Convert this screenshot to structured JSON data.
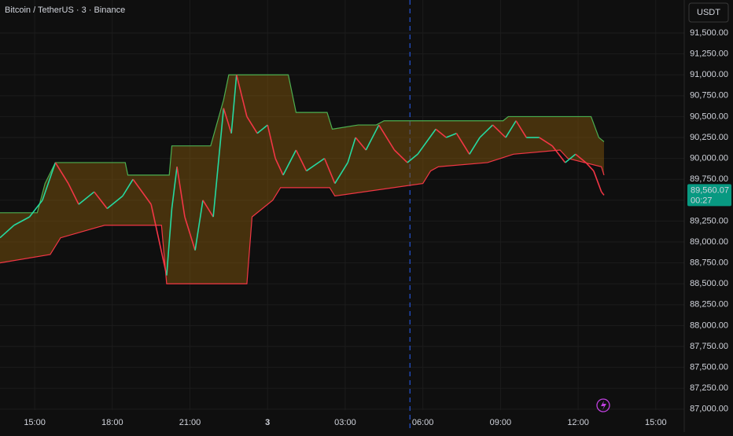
{
  "chart_data": {
    "type": "line",
    "title": "Bitcoin / TetherUS · 3 · Binance",
    "currency": "USDT",
    "last_price_label": "89,560.07",
    "countdown": "00:27",
    "xlim": [
      13.66,
      40.1
    ],
    "ylim": [
      86989,
      91895
    ],
    "xticks": [
      {
        "value": 15,
        "label": "15:00"
      },
      {
        "value": 18,
        "label": "18:00"
      },
      {
        "value": 21,
        "label": "21:00"
      },
      {
        "value": 24,
        "label": "3"
      },
      {
        "value": 27,
        "label": "03:00"
      },
      {
        "value": 30,
        "label": "06:00"
      },
      {
        "value": 33,
        "label": "09:00"
      },
      {
        "value": 36,
        "label": "12:00"
      },
      {
        "value": 39,
        "label": "15:00"
      }
    ],
    "yticks": [
      {
        "value": 87000,
        "label": "87,000.00"
      },
      {
        "value": 87250,
        "label": "87,250.00"
      },
      {
        "value": 87500,
        "label": "87,500.00"
      },
      {
        "value": 87750,
        "label": "87,750.00"
      },
      {
        "value": 88000,
        "label": "88,000.00"
      },
      {
        "value": 88250,
        "label": "88,250.00"
      },
      {
        "value": 88500,
        "label": "88,500.00"
      },
      {
        "value": 88750,
        "label": "88,750.00"
      },
      {
        "value": 89000,
        "label": "89,000.00"
      },
      {
        "value": 89250,
        "label": "89,250.00"
      },
      {
        "value": 89500,
        "label": "89,500.00"
      },
      {
        "value": 89750,
        "label": "89,750.00"
      },
      {
        "value": 90000,
        "label": "90,000.00"
      },
      {
        "value": 90250,
        "label": "90,250.00"
      },
      {
        "value": 90500,
        "label": "90,500.00"
      },
      {
        "value": 90750,
        "label": "90,750.00"
      },
      {
        "value": 91000,
        "label": "91,000.00"
      },
      {
        "value": 91250,
        "label": "91,250.00"
      },
      {
        "value": 91500,
        "label": "91,500.00"
      }
    ],
    "grid": true,
    "session_break_x": 29.5,
    "fill_color": "rgba(125,84,12,0.5)",
    "upper": {
      "color": "#4caf50",
      "x": [
        13.66,
        15.1,
        15.4,
        15.8,
        18.5,
        18.6,
        20.2,
        20.3,
        21.8,
        22.3,
        22.5,
        24.8,
        25.1,
        26.3,
        26.5,
        27.5,
        28.2,
        28.5,
        33.1,
        33.3,
        36.5,
        36.8,
        37.0
      ],
      "values": [
        89350,
        89350,
        89700,
        89950,
        89950,
        89800,
        89800,
        90150,
        90150,
        90700,
        91000,
        91000,
        90550,
        90550,
        90350,
        90400,
        90400,
        90450,
        90450,
        90500,
        90500,
        90250,
        90200
      ]
    },
    "lower": {
      "color": "#f23645",
      "x": [
        13.66,
        15.6,
        16.0,
        17.7,
        19.9,
        20.1,
        23.2,
        23.4,
        24.2,
        24.5,
        26.4,
        26.6,
        30.0,
        30.3,
        30.6,
        32.5,
        33.5,
        35.3,
        35.6,
        36.9,
        37.0
      ],
      "values": [
        88750,
        88850,
        89050,
        89200,
        89200,
        88500,
        88500,
        89300,
        89500,
        89650,
        89650,
        89550,
        89700,
        89850,
        89900,
        89950,
        90050,
        90100,
        90000,
        89900,
        89800
      ]
    },
    "price": {
      "up_color": "#26d9a0",
      "down_color": "#f23645",
      "x": [
        13.66,
        14.2,
        14.8,
        15.3,
        15.8,
        16.3,
        16.7,
        17.3,
        17.8,
        18.4,
        18.8,
        19.5,
        20.1,
        20.3,
        20.5,
        20.8,
        21.2,
        21.5,
        21.9,
        22.3,
        22.6,
        22.8,
        23.2,
        23.6,
        24.0,
        24.3,
        24.6,
        25.1,
        25.5,
        26.2,
        26.6,
        27.1,
        27.4,
        27.8,
        28.3,
        28.9,
        29.4,
        29.8,
        30.5,
        30.9,
        31.3,
        31.8,
        32.2,
        32.7,
        33.2,
        33.6,
        34.0,
        34.5,
        35.0,
        35.5,
        35.9,
        36.3,
        36.6,
        36.9,
        37.0
      ],
      "values": [
        89050,
        89200,
        89300,
        89500,
        89950,
        89700,
        89450,
        89600,
        89400,
        89550,
        89750,
        89450,
        88600,
        89400,
        89900,
        89300,
        88900,
        89500,
        89300,
        90600,
        90300,
        91000,
        90500,
        90300,
        90400,
        90000,
        89800,
        90100,
        89850,
        90000,
        89700,
        89950,
        90250,
        90100,
        90400,
        90100,
        89950,
        90050,
        90350,
        90250,
        90300,
        90050,
        90250,
        90400,
        90250,
        90450,
        90250,
        90250,
        90150,
        89950,
        90050,
        89950,
        89850,
        89600,
        89560.07
      ]
    }
  }
}
